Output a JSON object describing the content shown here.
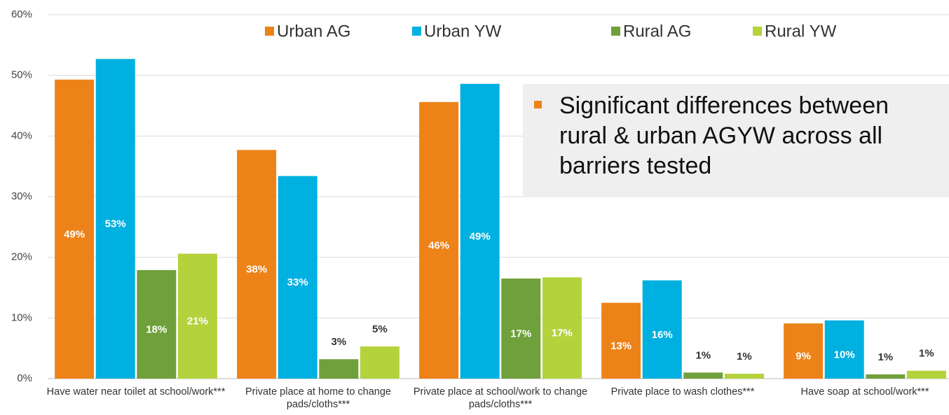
{
  "chart_data": {
    "type": "bar",
    "categories": [
      "Have water near toilet at school/work***",
      "Private place at home to change pads/cloths***",
      "Private place at school/work to change pads/cloths***",
      "Private place to wash clothes***",
      "Have soap at school/work***"
    ],
    "series": [
      {
        "name": "Urban AG",
        "color": "#ed8318",
        "values": [
          49.3,
          37.7,
          45.6,
          12.5,
          9.1
        ],
        "value_labels": [
          "49%",
          "38%",
          "46%",
          "13%",
          "9%"
        ]
      },
      {
        "name": "Urban YW",
        "color": "#00b0e0",
        "values": [
          52.7,
          33.4,
          48.6,
          16.2,
          9.6
        ],
        "value_labels": [
          "53%",
          "33%",
          "49%",
          "16%",
          "10%"
        ]
      },
      {
        "name": "Rural AG",
        "color": "#70a03c",
        "values": [
          17.9,
          3.2,
          16.5,
          1.0,
          0.7
        ],
        "value_labels": [
          "18%",
          "3%",
          "17%",
          "1%",
          "1%"
        ]
      },
      {
        "name": "Rural YW",
        "color": "#b4d23c",
        "values": [
          20.6,
          5.3,
          16.7,
          0.8,
          1.3
        ],
        "value_labels": [
          "21%",
          "5%",
          "17%",
          "1%",
          "1%"
        ]
      }
    ],
    "ylim": [
      0,
      60
    ],
    "yticks": [
      {
        "value": 0,
        "label": "0%"
      },
      {
        "value": 10,
        "label": "10%"
      },
      {
        "value": 20,
        "label": "20%"
      },
      {
        "value": 30,
        "label": "30%"
      },
      {
        "value": 40,
        "label": "40%"
      },
      {
        "value": 50,
        "label": "50%"
      },
      {
        "value": 60,
        "label": "60%"
      }
    ],
    "grid": true,
    "annotation": "Significant differences between rural & urban AGYW across all barriers tested"
  }
}
